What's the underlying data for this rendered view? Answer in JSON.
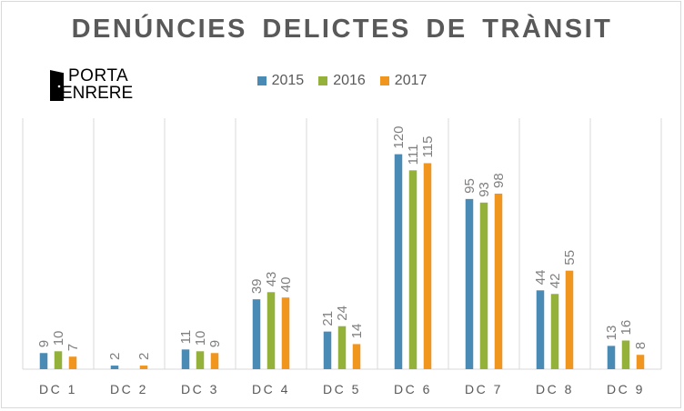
{
  "chart_data": {
    "type": "bar",
    "title": "DENÚNCIES DELICTES DE TRÀNSIT",
    "categories": [
      "DC 1",
      "DC 2",
      "DC 3",
      "DC 4",
      "DC 5",
      "DC 6",
      "DC 7",
      "DC 8",
      "DC 9"
    ],
    "series": [
      {
        "name": "2015",
        "color": "#4a8bb5",
        "values": [
          9,
          2,
          11,
          39,
          21,
          120,
          95,
          44,
          13
        ]
      },
      {
        "name": "2016",
        "color": "#94b23a",
        "values": [
          10,
          0,
          10,
          43,
          24,
          111,
          93,
          42,
          16
        ]
      },
      {
        "name": "2017",
        "color": "#f0961e",
        "values": [
          7,
          2,
          9,
          40,
          14,
          115,
          98,
          55,
          8
        ]
      }
    ],
    "value_labels": [
      [
        "9",
        "2",
        "11",
        "39",
        "21",
        "120",
        "95",
        "44",
        "13"
      ],
      [
        "10",
        "",
        "10",
        "43",
        "24",
        "111",
        "93",
        "42",
        "16"
      ],
      [
        "7",
        "2",
        "9",
        "40",
        "14",
        "115",
        "98",
        "55",
        "8"
      ]
    ],
    "ylim": [
      0,
      130
    ],
    "grid": true,
    "legend_position": "top"
  },
  "logo": {
    "line1": "PORTA",
    "line2": "ENRERE"
  }
}
